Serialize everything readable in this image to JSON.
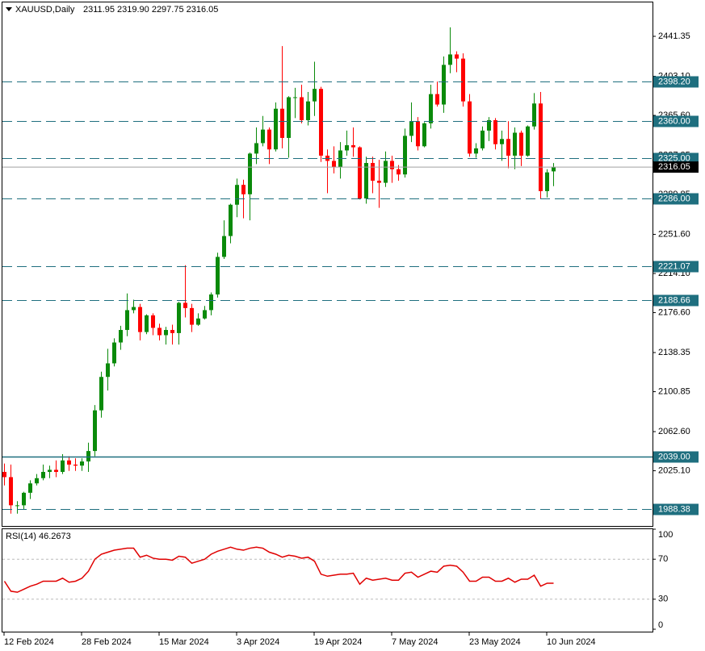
{
  "chart_data": {
    "type": "candlestick",
    "title": "XAUUSD,Daily",
    "ohlc_header": "2311.95 2319.90 2297.75 2316.05",
    "categories": [
      "12 Feb 2024",
      null,
      null,
      null,
      null,
      null,
      null,
      null,
      null,
      null,
      null,
      null,
      "28 Feb 2024",
      null,
      null,
      null,
      null,
      null,
      null,
      null,
      null,
      null,
      null,
      null,
      "15 Mar 2024",
      null,
      null,
      null,
      null,
      null,
      null,
      null,
      null,
      null,
      null,
      null,
      "3 Apr 2024",
      null,
      null,
      null,
      null,
      null,
      null,
      null,
      null,
      null,
      null,
      null,
      "19 Apr 2024",
      null,
      null,
      null,
      null,
      null,
      null,
      null,
      null,
      null,
      null,
      null,
      "7 May 2024",
      null,
      null,
      null,
      null,
      null,
      null,
      null,
      null,
      null,
      null,
      null,
      "23 May 2024",
      null,
      null,
      null,
      null,
      null,
      null,
      null,
      null,
      null,
      null,
      null,
      "10 Jun 2024",
      null
    ],
    "open": [
      2024,
      2019,
      1992,
      1992,
      2004,
      2013,
      2018,
      2024,
      2026,
      2024,
      2035,
      2031,
      2030,
      2034,
      2044,
      2083,
      2115,
      2128,
      2148,
      2160,
      2179,
      2182,
      2158,
      2174,
      2162,
      2155,
      2160,
      2157,
      2186,
      2181,
      2165,
      2171,
      2179,
      2194,
      2230,
      2250,
      2280,
      2299,
      2290,
      2329,
      2339,
      2352,
      2333,
      2372,
      2344,
      2383,
      2383,
      2361,
      2379,
      2391,
      2327,
      2322,
      2316,
      2332,
      2337,
      2335,
      2286,
      2320,
      2303,
      2301,
      2322,
      2314,
      2309,
      2346,
      2360,
      2336,
      2358,
      2386,
      2376,
      2414,
      2424,
      2420,
      2379,
      2329,
      2334,
      2351,
      2361,
      2338,
      2343,
      2327,
      2349,
      2327,
      2355,
      2377,
      2293,
      2311.95
    ],
    "high": [
      2032,
      2031,
      1996,
      2005,
      2016,
      2022,
      2031,
      2030,
      2035,
      2041,
      2039,
      2037,
      2037,
      2052,
      2088,
      2120,
      2142,
      2152,
      2164,
      2195,
      2189,
      2185,
      2175,
      2176,
      2166,
      2163,
      2165,
      2187,
      2222,
      2185,
      2176,
      2183,
      2196,
      2234,
      2265,
      2281,
      2305,
      2304,
      2330,
      2354,
      2365,
      2354,
      2378,
      2432,
      2384,
      2392,
      2395,
      2388,
      2417,
      2393,
      2333,
      2336,
      2340,
      2351,
      2354,
      2336,
      2326,
      2326,
      2323,
      2331,
      2327,
      2318,
      2353,
      2378,
      2364,
      2359,
      2395,
      2398,
      2422,
      2450,
      2427,
      2425,
      2386,
      2339,
      2355,
      2364,
      2363,
      2351,
      2360,
      2354,
      2351,
      2356,
      2387,
      2388,
      2314,
      2319.9
    ],
    "low": [
      2011,
      1984,
      1984,
      1988,
      1998,
      2011,
      2016,
      2018,
      2019,
      2022,
      2025,
      2025,
      2025,
      2024,
      2039,
      2076,
      2102,
      2125,
      2141,
      2154,
      2176,
      2150,
      2156,
      2155,
      2150,
      2146,
      2146,
      2146,
      2172,
      2158,
      2164,
      2170,
      2174,
      2191,
      2228,
      2243,
      2268,
      2267,
      2265,
      2319,
      2336,
      2319,
      2331,
      2334,
      2325,
      2363,
      2358,
      2356,
      2365,
      2321,
      2291,
      2310,
      2305,
      2327,
      2326,
      2285,
      2281,
      2291,
      2277,
      2297,
      2301,
      2303,
      2306,
      2340,
      2332,
      2335,
      2353,
      2374,
      2368,
      2406,
      2407,
      2374,
      2326,
      2325,
      2332,
      2341,
      2333,
      2322,
      2315,
      2314,
      2317,
      2326,
      2352,
      2286,
      2287,
      2297.75
    ],
    "close": [
      2019,
      1992,
      1992,
      2004,
      2013,
      2018,
      2024,
      2026,
      2024,
      2035,
      2031,
      2030,
      2034,
      2044,
      2083,
      2115,
      2128,
      2148,
      2160,
      2179,
      2182,
      2158,
      2174,
      2162,
      2155,
      2160,
      2157,
      2186,
      2181,
      2165,
      2171,
      2179,
      2194,
      2230,
      2250,
      2280,
      2299,
      2290,
      2329,
      2339,
      2352,
      2333,
      2372,
      2344,
      2383,
      2383,
      2361,
      2379,
      2391,
      2327,
      2322,
      2316,
      2332,
      2337,
      2335,
      2286,
      2320,
      2303,
      2301,
      2322,
      2314,
      2309,
      2346,
      2360,
      2336,
      2358,
      2386,
      2376,
      2414,
      2424,
      2420,
      2379,
      2329,
      2334,
      2351,
      2361,
      2338,
      2343,
      2327,
      2349,
      2327,
      2355,
      2377,
      2293,
      2311,
      2316.05
    ],
    "up_color": "#0a8a0a",
    "down_color": "#ff0000",
    "ylim": [
      1972.2,
      2474.6
    ],
    "yticks": [
      2441.35,
      {
        "value": 2403.1,
        "label": "2403.10"
      },
      {
        "value": 2365.6,
        "label": "2365.60"
      },
      2327.35,
      2289.85,
      {
        "value": 2251.6,
        "label": "2251.60"
      },
      {
        "value": 2214.1,
        "label": "2214.10"
      },
      {
        "value": 2176.6,
        "label": "2176.60"
      },
      2138.35,
      2100.85,
      {
        "value": 2062.6,
        "label": "2062.60"
      },
      {
        "value": 2025.1,
        "label": "2025.10"
      }
    ],
    "levels": [
      {
        "value": 2398.2,
        "label": "2398.20",
        "style": "dashed"
      },
      {
        "value": 2360,
        "label": "2360.00",
        "style": "dashed"
      },
      {
        "value": 2325,
        "label": "2325.00",
        "style": "dashed"
      },
      {
        "value": 2286,
        "label": "2286.00",
        "style": "dashed"
      },
      {
        "value": 2221.07,
        "label": "2221.07",
        "style": "dashed"
      },
      {
        "value": 2188.66,
        "label": "2188.66",
        "style": "dashed"
      },
      {
        "value": 2039,
        "label": "2039.00",
        "style": "solid"
      },
      {
        "value": 1988.38,
        "label": "1988.38",
        "style": "dashed"
      }
    ],
    "level_color": "#1f6f7f",
    "current_price": 2316.05,
    "rsi": {
      "label": "RSI(14) 46.2673",
      "color": "#e00000",
      "values": [
        48,
        38,
        37,
        40,
        43,
        45,
        48,
        48,
        48,
        51,
        47,
        48,
        51,
        58,
        70,
        75,
        77,
        79,
        80,
        81,
        81,
        72,
        74,
        71,
        70,
        70,
        69,
        73,
        72,
        66,
        68,
        70,
        75,
        78,
        80,
        82,
        80,
        79,
        81,
        82,
        81,
        77,
        75,
        72,
        74,
        73,
        71,
        72,
        68,
        55,
        53,
        54,
        55,
        55,
        56,
        45,
        51,
        49,
        50,
        51,
        49,
        49,
        56,
        57,
        52,
        55,
        58,
        57,
        63,
        64,
        63,
        57,
        48,
        48,
        52,
        52,
        48,
        48,
        51,
        47,
        50,
        50,
        54,
        43,
        46,
        46
      ],
      "ylim": [
        0,
        100
      ],
      "yticks": [
        100,
        70,
        30,
        0
      ],
      "grid_ticks": [
        70,
        30
      ]
    }
  }
}
